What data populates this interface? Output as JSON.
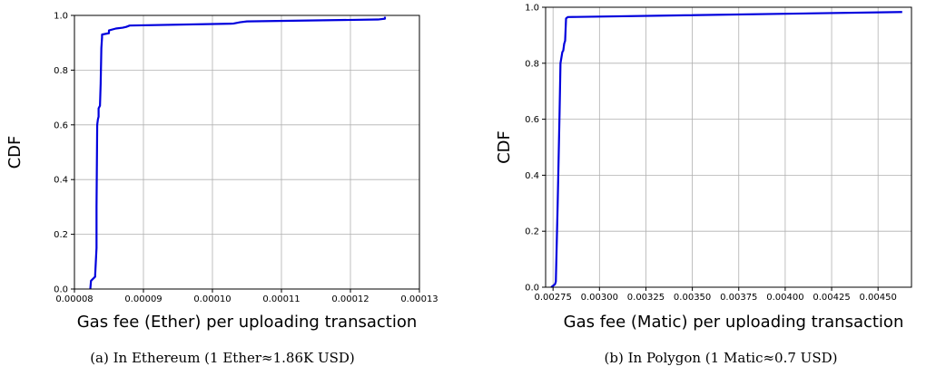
{
  "chart_data": [
    {
      "type": "line",
      "xlabel": "Gas fee (Ether) per uploading transaction",
      "ylabel": "CDF",
      "caption": "(a) In Ethereum (1 Ether≈1.86K USD)",
      "xlim": [
        8e-05,
        0.00013
      ],
      "ylim": [
        0.0,
        1.0
      ],
      "xticks": [
        "0.00008",
        "0.00009",
        "0.00010",
        "0.00011",
        "0.00012",
        "0.00013"
      ],
      "xtick_values": [
        8e-05,
        9e-05,
        0.0001,
        0.00011,
        0.00012,
        0.00013
      ],
      "yticks": [
        "0.0",
        "0.2",
        "0.4",
        "0.6",
        "0.8",
        "1.0"
      ],
      "ytick_values": [
        0.0,
        0.2,
        0.4,
        0.6,
        0.8,
        1.0
      ],
      "grid": true,
      "color": "#0000dd",
      "series": [
        {
          "x": [
            8.23e-05,
            8.24e-05,
            8.28e-05,
            8.3e-05,
            8.3e-05,
            8.32e-05,
            8.32e-05,
            8.33e-05,
            8.34e-05,
            8.35e-05,
            8.35e-05,
            8.37e-05,
            8.38e-05,
            8.39e-05,
            8.4e-05,
            8.4e-05,
            8.5e-05,
            8.5e-05,
            8.6e-05,
            8.7e-05,
            8.75e-05,
            8.8e-05,
            0.000103,
            0.000104,
            0.000105,
            0.000124,
            0.000125,
            0.000125
          ],
          "y": [
            0.0,
            0.03,
            0.04,
            0.045,
            0.05,
            0.15,
            0.3,
            0.6,
            0.62,
            0.63,
            0.66,
            0.67,
            0.75,
            0.88,
            0.92,
            0.93,
            0.935,
            0.945,
            0.952,
            0.955,
            0.958,
            0.963,
            0.97,
            0.975,
            0.978,
            0.985,
            0.988,
            0.995
          ]
        }
      ]
    },
    {
      "type": "line",
      "xlabel": "Gas fee (Matic) per uploading transaction",
      "ylabel": "CDF",
      "caption": "(b) In Polygon (1 Matic≈0.7 USD)",
      "xlim": [
        0.00271,
        0.00468
      ],
      "ylim": [
        0.0,
        1.0
      ],
      "xticks": [
        "0.00275",
        "0.00300",
        "0.00325",
        "0.00350",
        "0.00375",
        "0.00400",
        "0.00425",
        "0.00450"
      ],
      "xtick_values": [
        0.00275,
        0.003,
        0.00325,
        0.0035,
        0.00375,
        0.004,
        0.00425,
        0.0045
      ],
      "yticks": [
        "0.0",
        "0.2",
        "0.4",
        "0.6",
        "0.8",
        "1.0"
      ],
      "ytick_values": [
        0.0,
        0.2,
        0.4,
        0.6,
        0.8,
        1.0
      ],
      "grid": true,
      "color": "#0000dd",
      "series": [
        {
          "x": [
            0.00274,
            0.00276,
            0.002765,
            0.002775,
            0.002785,
            0.00279,
            0.0028,
            0.002805,
            0.00281,
            0.002815,
            0.00282,
            0.00283,
            0.00463
          ],
          "y": [
            0.0,
            0.01,
            0.02,
            0.3,
            0.62,
            0.8,
            0.84,
            0.845,
            0.87,
            0.88,
            0.96,
            0.965,
            0.983
          ]
        }
      ]
    }
  ]
}
